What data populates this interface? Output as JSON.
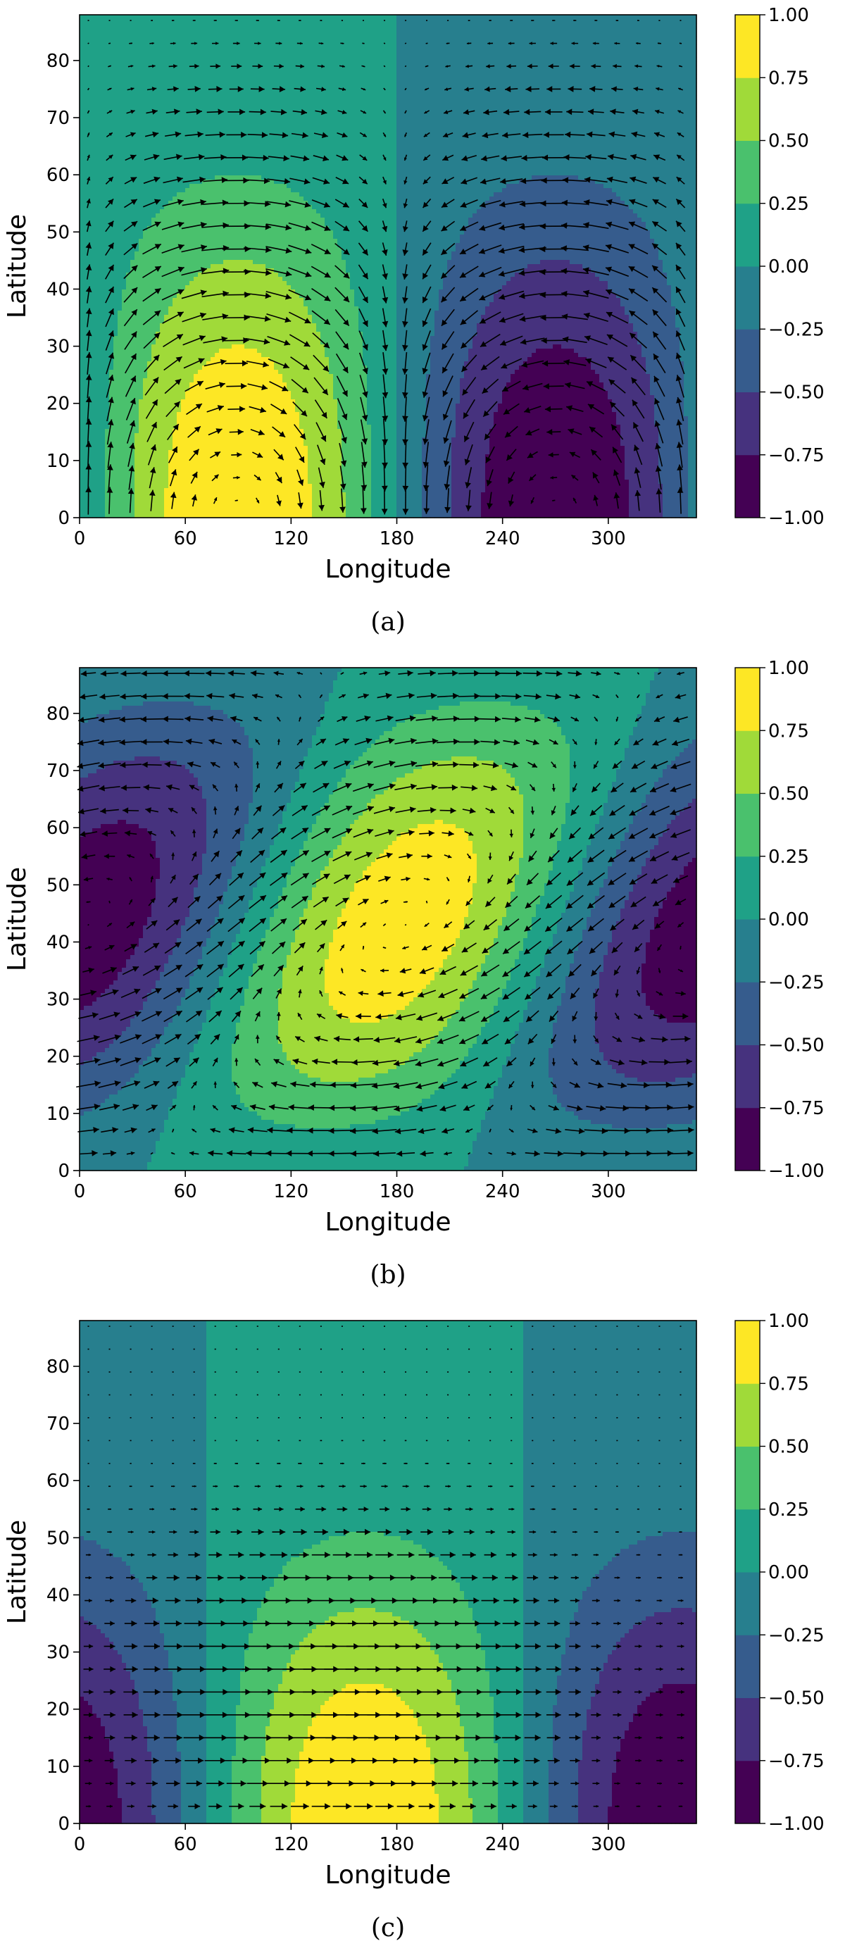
{
  "chart_data": [
    {
      "type": "heatmap",
      "subtype": "filled-contour-with-quiver",
      "caption": "(a)",
      "xlabel": "Longitude",
      "ylabel": "Latitude",
      "xlim": [
        0,
        350
      ],
      "ylim": [
        0,
        88
      ],
      "xticks": [
        0,
        60,
        120,
        180,
        240,
        300
      ],
      "yticks": [
        0,
        10,
        20,
        30,
        40,
        50,
        60,
        70,
        80
      ],
      "field": "sin(longitude) * cos(latitude)^2",
      "vector_field": "stream-function gradient arrows",
      "colorbar": {
        "range": [
          -1.0,
          1.0
        ],
        "ticks": [
          "−1.00",
          "−0.75",
          "−0.50",
          "−0.25",
          "0.00",
          "0.25",
          "0.50",
          "0.75",
          "1.00"
        ]
      }
    },
    {
      "type": "heatmap",
      "subtype": "filled-contour-with-quiver",
      "caption": "(b)",
      "xlabel": "Longitude",
      "ylabel": "Latitude",
      "xlim": [
        0,
        350
      ],
      "ylim": [
        0,
        88
      ],
      "xticks": [
        0,
        60,
        120,
        180,
        240,
        300
      ],
      "yticks": [
        0,
        10,
        20,
        30,
        40,
        50,
        60,
        70,
        80
      ],
      "field": "tilted wave pattern",
      "vector_field": "stream-function gradient arrows",
      "colorbar": {
        "range": [
          -1.0,
          1.0
        ],
        "ticks": [
          "−1.00",
          "−0.75",
          "−0.50",
          "−0.25",
          "0.00",
          "0.25",
          "0.50",
          "0.75",
          "1.00"
        ]
      }
    },
    {
      "type": "heatmap",
      "subtype": "filled-contour-with-quiver",
      "caption": "(c)",
      "xlabel": "Longitude",
      "ylabel": "Latitude",
      "xlim": [
        0,
        350
      ],
      "ylim": [
        0,
        88
      ],
      "xticks": [
        0,
        60,
        120,
        180,
        240,
        300
      ],
      "yticks": [
        0,
        10,
        20,
        30,
        40,
        50,
        60,
        70,
        80
      ],
      "field": "cos(longitude - 160) * cos(latitude)^3",
      "vector_field": "zonal arrows",
      "colorbar": {
        "range": [
          -1.0,
          1.0
        ],
        "ticks": [
          "−1.00",
          "−0.75",
          "−0.50",
          "−0.25",
          "0.00",
          "0.25",
          "0.50",
          "0.75",
          "1.00"
        ]
      }
    }
  ],
  "colors": {
    "levels": [
      "#440154",
      "#46327e",
      "#365c8d",
      "#277f8e",
      "#1fa187",
      "#4ac16d",
      "#a0da39",
      "#fde725"
    ]
  }
}
